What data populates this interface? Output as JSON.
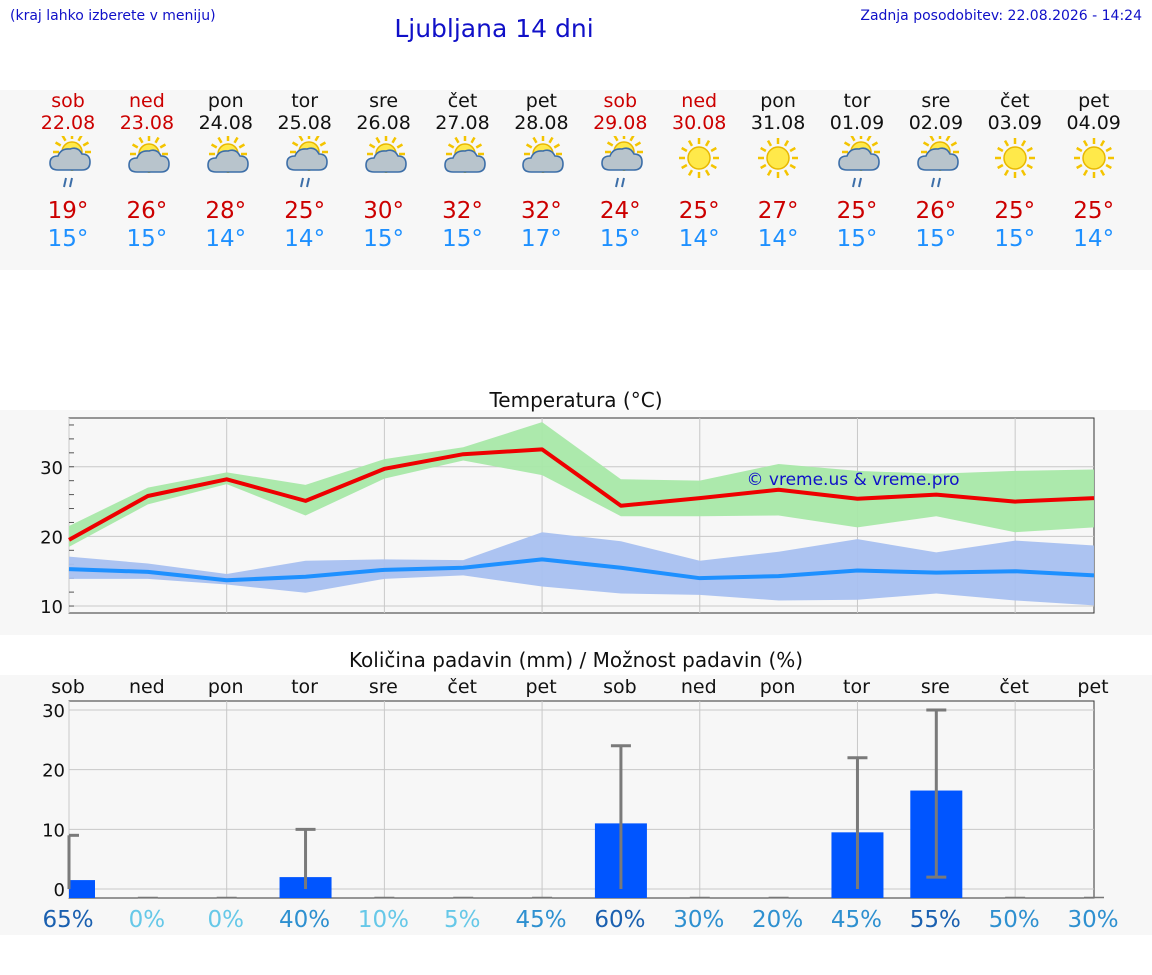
{
  "header": {
    "menu_hint": "(kraj lahko izberete v meniju)",
    "title": "Ljubljana 14 dni",
    "updated": "Zadnja posodobitev: 22.08.2026 - 14:24"
  },
  "colors": {
    "weekend": "#cc0000",
    "weekday": "#111111",
    "max_line": "#ee0000",
    "min_line": "#1e90ff",
    "max_band": "#a8e8a8",
    "min_band": "#a8c0f0",
    "bar": "#0055ff"
  },
  "days": [
    {
      "name": "sob",
      "date": "22.08",
      "weekend": true,
      "icon": "sun-cloud-rain-icon",
      "tmax": "19°",
      "tmin": "15°"
    },
    {
      "name": "ned",
      "date": "23.08",
      "weekend": true,
      "icon": "sun-cloud-icon",
      "tmax": "26°",
      "tmin": "15°"
    },
    {
      "name": "pon",
      "date": "24.08",
      "weekend": false,
      "icon": "sun-cloud-icon",
      "tmax": "28°",
      "tmin": "14°"
    },
    {
      "name": "tor",
      "date": "25.08",
      "weekend": false,
      "icon": "sun-cloud-rain-icon",
      "tmax": "25°",
      "tmin": "14°"
    },
    {
      "name": "sre",
      "date": "26.08",
      "weekend": false,
      "icon": "sun-cloud-icon",
      "tmax": "30°",
      "tmin": "15°"
    },
    {
      "name": "čet",
      "date": "27.08",
      "weekend": false,
      "icon": "sun-cloud-icon",
      "tmax": "32°",
      "tmin": "15°"
    },
    {
      "name": "pet",
      "date": "28.08",
      "weekend": false,
      "icon": "sun-cloud-icon",
      "tmax": "32°",
      "tmin": "17°"
    },
    {
      "name": "sob",
      "date": "29.08",
      "weekend": true,
      "icon": "sun-cloud-rain-icon",
      "tmax": "24°",
      "tmin": "15°"
    },
    {
      "name": "ned",
      "date": "30.08",
      "weekend": true,
      "icon": "sun-icon",
      "tmax": "25°",
      "tmin": "14°"
    },
    {
      "name": "pon",
      "date": "31.08",
      "weekend": false,
      "icon": "sun-icon",
      "tmax": "27°",
      "tmin": "14°"
    },
    {
      "name": "tor",
      "date": "01.09",
      "weekend": false,
      "icon": "sun-cloud-rain-icon",
      "tmax": "25°",
      "tmin": "15°"
    },
    {
      "name": "sre",
      "date": "02.09",
      "weekend": false,
      "icon": "sun-cloud-rain-icon",
      "tmax": "26°",
      "tmin": "15°"
    },
    {
      "name": "čet",
      "date": "03.09",
      "weekend": false,
      "icon": "sun-icon",
      "tmax": "25°",
      "tmin": "15°"
    },
    {
      "name": "pet",
      "date": "04.09",
      "weekend": false,
      "icon": "sun-icon",
      "tmax": "25°",
      "tmin": "14°"
    }
  ],
  "chart_data": [
    {
      "type": "line",
      "title": "Temperatura (°C)",
      "watermark": "© vreme.us & vreme.pro",
      "x": [
        0,
        1,
        2,
        3,
        4,
        5,
        6,
        7,
        8,
        9,
        10,
        11,
        12,
        13
      ],
      "ylim": [
        9,
        37
      ],
      "yticks": [
        10,
        20,
        30
      ],
      "grid": true,
      "series": [
        {
          "role": "max",
          "values": [
            19.5,
            25.8,
            28.2,
            25.1,
            29.7,
            31.8,
            32.5,
            24.4,
            25.5,
            26.7,
            25.4,
            26.0,
            25.0,
            25.5
          ],
          "band_low": [
            18.5,
            24.6,
            27.5,
            23.0,
            28.3,
            30.9,
            28.8,
            22.9,
            22.9,
            23.0,
            21.3,
            22.9,
            20.6,
            21.3
          ],
          "band_high": [
            21.5,
            27.0,
            29.2,
            27.4,
            31.1,
            32.8,
            36.4,
            28.2,
            28.0,
            30.4,
            29.4,
            29.0,
            29.4,
            29.6
          ]
        },
        {
          "role": "min",
          "values": [
            15.3,
            14.9,
            13.7,
            14.2,
            15.2,
            15.5,
            16.7,
            15.5,
            14.0,
            14.3,
            15.1,
            14.8,
            15.0,
            14.4
          ],
          "band_low": [
            13.9,
            13.9,
            13.1,
            11.9,
            13.9,
            14.4,
            12.8,
            11.8,
            11.6,
            10.8,
            10.9,
            11.8,
            10.8,
            10.1
          ],
          "band_high": [
            17.1,
            16.1,
            14.6,
            16.5,
            16.7,
            16.6,
            20.6,
            19.3,
            16.5,
            17.8,
            19.6,
            17.7,
            19.4,
            18.7
          ]
        }
      ]
    },
    {
      "type": "bar",
      "title": "Količina padavin (mm) / Možnost padavin (%)",
      "categories": [
        "sob",
        "ned",
        "pon",
        "tor",
        "sre",
        "čet",
        "pet",
        "sob",
        "ned",
        "pon",
        "tor",
        "sre",
        "čet",
        "pet"
      ],
      "values": [
        1.5,
        0,
        0,
        2,
        0,
        0,
        0,
        11,
        0,
        0,
        9.5,
        16.5,
        0,
        0
      ],
      "err_high": [
        9,
        0,
        0,
        10,
        0,
        0,
        0,
        24,
        0,
        0,
        22,
        30,
        0,
        0
      ],
      "err_low": [
        0,
        0,
        0,
        0,
        0,
        0,
        0,
        0,
        0,
        0,
        0,
        2,
        0,
        0
      ],
      "ylim": [
        -1.5,
        31.5
      ],
      "yticks": [
        0,
        10,
        20,
        30
      ],
      "probabilities": [
        "65%",
        "0%",
        "0%",
        "40%",
        "10%",
        "5%",
        "45%",
        "60%",
        "30%",
        "20%",
        "45%",
        "55%",
        "50%",
        "30%"
      ],
      "prob_colors": [
        "#1a60b0",
        "#66c8e8",
        "#66c8e8",
        "#2e90d0",
        "#66c8e8",
        "#66c8e8",
        "#2e90d0",
        "#1a60b0",
        "#2e90d0",
        "#2e90d0",
        "#2e90d0",
        "#1a60b0",
        "#2e90d0",
        "#2e90d0"
      ]
    }
  ]
}
